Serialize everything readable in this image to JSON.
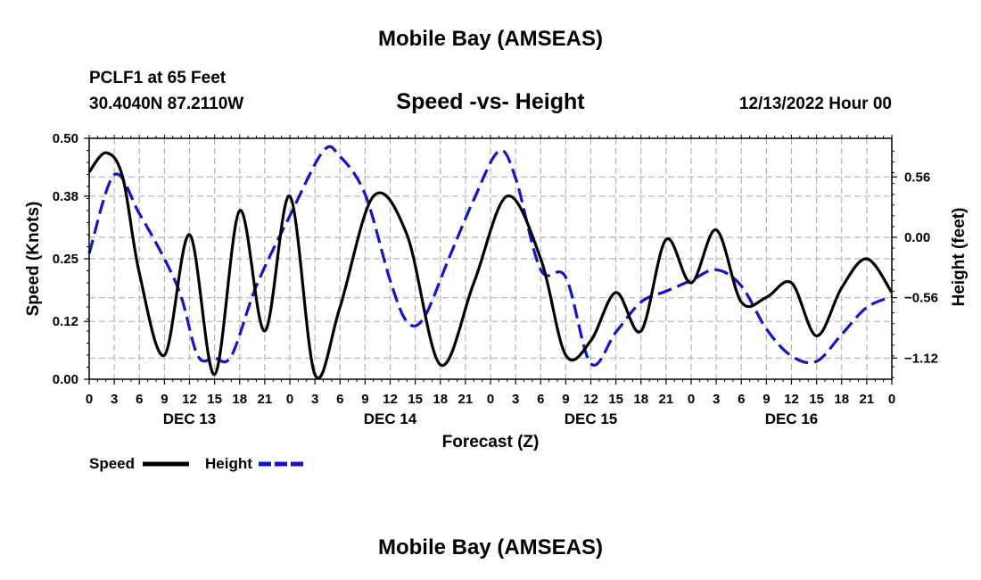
{
  "header": {
    "title": "Mobile Bay (AMSEAS)",
    "station": "PCLF1 at 65 Feet",
    "coords": "30.4040N  87.2110W",
    "subtitle": "Speed -vs- Height",
    "datetime": "12/13/2022 Hour 00",
    "footer_title": "Mobile Bay (AMSEAS)"
  },
  "chart_data": {
    "type": "line",
    "xlabel": "Forecast (Z)",
    "ylabel_left": "Speed (Knots)",
    "ylabel_right": "Height (feet)",
    "x_tick_labels": [
      "0",
      "3",
      "6",
      "9",
      "12",
      "15",
      "18",
      "21",
      "0",
      "3",
      "6",
      "9",
      "12",
      "15",
      "18",
      "21",
      "0",
      "3",
      "6",
      "9",
      "12",
      "15",
      "18",
      "21",
      "0",
      "3",
      "6",
      "9",
      "12",
      "15",
      "18",
      "21",
      "0"
    ],
    "day_labels": [
      "DEC 13",
      "DEC 14",
      "DEC 15",
      "DEC 16"
    ],
    "y_left": {
      "min": 0.0,
      "max": 0.5,
      "ticks": [
        "0.00",
        "0.12",
        "0.25",
        "0.38",
        "0.50"
      ]
    },
    "y_right": {
      "ticks": [
        0.56,
        0.0,
        -0.56,
        -1.12
      ],
      "tick_labels": [
        "0.56",
        "0.00",
        "−0.56",
        "−1.12"
      ]
    },
    "grid": true,
    "legend_position": "bottom-left",
    "series": [
      {
        "name": "Speed",
        "color": "#000000",
        "style": "solid",
        "axis": "left",
        "x_hours": [
          0,
          2,
          4,
          6,
          9,
          12,
          15,
          18,
          21,
          24,
          27,
          30,
          34,
          38,
          42,
          46,
          50,
          54,
          57,
          60,
          63,
          66,
          69,
          72,
          75,
          78,
          81,
          84,
          87,
          90,
          93,
          96
        ],
        "values": [
          0.43,
          0.47,
          0.42,
          0.22,
          0.05,
          0.3,
          0.01,
          0.35,
          0.1,
          0.38,
          0.01,
          0.15,
          0.38,
          0.3,
          0.03,
          0.2,
          0.38,
          0.25,
          0.05,
          0.08,
          0.18,
          0.1,
          0.29,
          0.2,
          0.31,
          0.16,
          0.17,
          0.2,
          0.09,
          0.19,
          0.25,
          0.18
        ]
      },
      {
        "name": "Height",
        "color": "#1414c8",
        "style": "dashed",
        "axis": "right",
        "x_hours": [
          0,
          3,
          6,
          9,
          11,
          13,
          15,
          17,
          20,
          24,
          28,
          30,
          33,
          36,
          38,
          40,
          43,
          46,
          49,
          51,
          54,
          57,
          60,
          63,
          66,
          69,
          72,
          75,
          78,
          81,
          84,
          87,
          90,
          93,
          96
        ],
        "values": [
          -0.15,
          0.58,
          0.22,
          -0.2,
          -0.55,
          -1.1,
          -1.12,
          -1.1,
          -0.45,
          0.2,
          0.8,
          0.75,
          0.4,
          -0.4,
          -0.78,
          -0.75,
          -0.2,
          0.35,
          0.8,
          0.55,
          -0.3,
          -0.37,
          -1.17,
          -0.88,
          -0.6,
          -0.5,
          -0.4,
          -0.3,
          -0.45,
          -0.85,
          -1.1,
          -1.15,
          -0.9,
          -0.65,
          -0.55
        ]
      }
    ]
  }
}
